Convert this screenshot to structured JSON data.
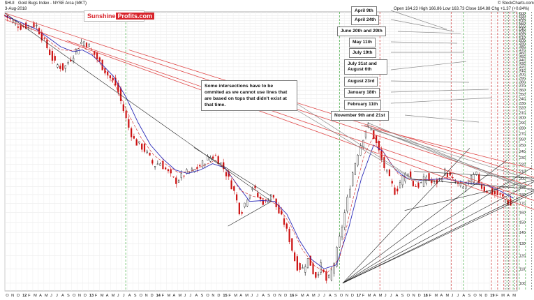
{
  "header": {
    "symbol": "$HUI",
    "index_name": "Gold Bugs Index - NYSE Arca (MKT)",
    "date": "3-Aug-2018",
    "ohlc": "Open 164.23  High 166.86  Low 163.73  Close 164.88  Chg +1.37 (+0.84%)",
    "watermark": "© StockCharts.com"
  },
  "logo": {
    "part1": "Sunshine",
    "part2": "Profits.com"
  },
  "annotation": "Some intersections have to be ommited as we cannot use lines that are based on tops that didn't exist at that time.",
  "callouts": [
    "April 9th",
    "April 24th",
    "June 20th and 29th",
    "May 11th",
    "July 19th",
    "July 31st and August 6th",
    "August 23rd",
    "January 18th",
    "February 11th",
    "November 9th and 21st"
  ],
  "colors": {
    "logo_red": "#d8232a",
    "down_candle": "#cc1010",
    "ma": "#2a2ab8",
    "red_line": "#e04b4b",
    "green_vline": "#3caa3c",
    "red_vline": "#cc2f2f"
  },
  "chart_data": {
    "type": "candlestick",
    "y_scale": "log",
    "ylim": [
      95,
      605
    ],
    "yticks": [
      100,
      110,
      120,
      130,
      140,
      150,
      160,
      170,
      180,
      190,
      200,
      210,
      220,
      230,
      240,
      250,
      260,
      270,
      280,
      290,
      300,
      310,
      320,
      330,
      340,
      350,
      360,
      370,
      380,
      390,
      400,
      410,
      420,
      430,
      440,
      450,
      460,
      470,
      480,
      490,
      500,
      510,
      520,
      530,
      540,
      550,
      560,
      570,
      580,
      590,
      600
    ],
    "x_range": [
      "2011-10",
      "2019-05"
    ],
    "x_ticks": [
      "O",
      "N",
      "D",
      "12",
      "F",
      "M",
      "A",
      "M",
      "J",
      "J",
      "A",
      "S",
      "O",
      "N",
      "D",
      "13",
      "F",
      "M",
      "A",
      "M",
      "J",
      "J",
      "A",
      "S",
      "O",
      "N",
      "D",
      "14",
      "F",
      "M",
      "A",
      "M",
      "J",
      "J",
      "A",
      "S",
      "O",
      "N",
      "D",
      "15",
      "F",
      "M",
      "A",
      "M",
      "J",
      "J",
      "A",
      "S",
      "O",
      "N",
      "D",
      "16",
      "F",
      "M",
      "A",
      "M",
      "J",
      "J",
      "A",
      "S",
      "O",
      "N",
      "D",
      "17",
      "F",
      "M",
      "A",
      "M",
      "J",
      "J",
      "A",
      "S",
      "O",
      "N",
      "D",
      "18",
      "F",
      "M",
      "A",
      "M",
      "J",
      "J",
      "A",
      "S",
      "O",
      "N",
      "D",
      "19",
      "F",
      "M",
      "A",
      "M"
    ],
    "price_path": [
      [
        0,
        590
      ],
      [
        5,
        548
      ],
      [
        10,
        555
      ],
      [
        13,
        490
      ],
      [
        16,
        430
      ],
      [
        19,
        415
      ],
      [
        22,
        455
      ],
      [
        25,
        500
      ],
      [
        27,
        485
      ],
      [
        30,
        440
      ],
      [
        33,
        400
      ],
      [
        36,
        370
      ],
      [
        38,
        320
      ],
      [
        40,
        280
      ],
      [
        42,
        255
      ],
      [
        44,
        248
      ],
      [
        46,
        236
      ],
      [
        48,
        218
      ],
      [
        50,
        223
      ],
      [
        52,
        212
      ],
      [
        55,
        196
      ],
      [
        58,
        207
      ],
      [
        61,
        211
      ],
      [
        64,
        222
      ],
      [
        66,
        231
      ],
      [
        68,
        232
      ],
      [
        70,
        219
      ],
      [
        72,
        202
      ],
      [
        74,
        183
      ],
      [
        76,
        158
      ],
      [
        78,
        176
      ],
      [
        80,
        190
      ],
      [
        82,
        175
      ],
      [
        84,
        170
      ],
      [
        86,
        182
      ],
      [
        88,
        162
      ],
      [
        90,
        150
      ],
      [
        92,
        132
      ],
      [
        94,
        112
      ],
      [
        96,
        110
      ],
      [
        98,
        118
      ],
      [
        100,
        104
      ],
      [
        102,
        112
      ],
      [
        104,
        100
      ],
      [
        106,
        112
      ],
      [
        108,
        135
      ],
      [
        110,
        165
      ],
      [
        112,
        205
      ],
      [
        114,
        240
      ],
      [
        116,
        270
      ],
      [
        117,
        285
      ],
      [
        118,
        279
      ],
      [
        120,
        250
      ],
      [
        122,
        220
      ],
      [
        124,
        200
      ],
      [
        126,
        182
      ],
      [
        128,
        200
      ],
      [
        130,
        210
      ],
      [
        132,
        190
      ],
      [
        134,
        192
      ],
      [
        136,
        203
      ],
      [
        138,
        193
      ],
      [
        140,
        197
      ],
      [
        142,
        210
      ],
      [
        144,
        200
      ],
      [
        146,
        192
      ],
      [
        148,
        188
      ],
      [
        150,
        198
      ],
      [
        152,
        206
      ],
      [
        154,
        188
      ],
      [
        156,
        184
      ],
      [
        158,
        181
      ],
      [
        160,
        178
      ],
      [
        162,
        173
      ],
      [
        163,
        168
      ],
      [
        164,
        165
      ]
    ],
    "sma": [
      [
        0,
        590
      ],
      [
        5,
        565
      ],
      [
        10,
        540
      ],
      [
        14,
        510
      ],
      [
        18,
        480
      ],
      [
        22,
        465
      ],
      [
        25,
        470
      ],
      [
        28,
        455
      ],
      [
        31,
        430
      ],
      [
        35,
        395
      ],
      [
        39,
        345
      ],
      [
        43,
        290
      ],
      [
        47,
        250
      ],
      [
        51,
        228
      ],
      [
        55,
        212
      ],
      [
        59,
        207
      ],
      [
        63,
        212
      ],
      [
        67,
        221
      ],
      [
        71,
        215
      ],
      [
        75,
        192
      ],
      [
        79,
        172
      ],
      [
        83,
        173
      ],
      [
        87,
        172
      ],
      [
        91,
        158
      ],
      [
        95,
        133
      ],
      [
        99,
        117
      ],
      [
        103,
        110
      ],
      [
        107,
        113
      ],
      [
        111,
        145
      ],
      [
        115,
        200
      ],
      [
        119,
        250
      ],
      [
        122,
        240
      ],
      [
        126,
        212
      ],
      [
        130,
        200
      ],
      [
        134,
        198
      ],
      [
        138,
        199
      ],
      [
        142,
        200
      ],
      [
        146,
        197
      ],
      [
        150,
        194
      ],
      [
        154,
        193
      ],
      [
        158,
        188
      ],
      [
        162,
        180
      ],
      [
        164,
        176
      ]
    ],
    "ema": [
      [
        0,
        588
      ],
      [
        5,
        560
      ],
      [
        10,
        545
      ],
      [
        14,
        500
      ],
      [
        18,
        470
      ],
      [
        22,
        468
      ],
      [
        25,
        480
      ],
      [
        28,
        460
      ],
      [
        32,
        415
      ],
      [
        36,
        365
      ],
      [
        40,
        305
      ],
      [
        44,
        262
      ],
      [
        48,
        234
      ],
      [
        52,
        220
      ],
      [
        56,
        208
      ],
      [
        60,
        210
      ],
      [
        64,
        218
      ],
      [
        68,
        226
      ],
      [
        72,
        210
      ],
      [
        76,
        185
      ],
      [
        80,
        178
      ],
      [
        84,
        175
      ],
      [
        88,
        168
      ],
      [
        92,
        148
      ],
      [
        96,
        125
      ],
      [
        100,
        112
      ],
      [
        104,
        107
      ],
      [
        108,
        118
      ],
      [
        112,
        170
      ],
      [
        116,
        235
      ],
      [
        119,
        265
      ],
      [
        123,
        232
      ],
      [
        127,
        206
      ],
      [
        131,
        198
      ],
      [
        135,
        199
      ],
      [
        139,
        198
      ],
      [
        143,
        202
      ],
      [
        147,
        195
      ],
      [
        151,
        196
      ],
      [
        155,
        192
      ],
      [
        159,
        185
      ],
      [
        163,
        172
      ],
      [
        164,
        170
      ]
    ],
    "vlines_green": [
      39,
      108,
      148,
      162,
      164,
      166,
      168,
      171,
      173,
      175,
      176,
      177
    ],
    "vlines_red": [
      121,
      144,
      157,
      159,
      161,
      163,
      165
    ],
    "vlines_dark": [
      161.5,
      162.5,
      164.5,
      170,
      174
    ],
    "red_lines": [
      [
        [
          0,
          600
        ],
        [
          170,
          190
        ]
      ],
      [
        [
          0,
          575
        ],
        [
          175,
          158
        ]
      ],
      [
        [
          20,
          500
        ],
        [
          175,
          168
        ]
      ],
      [
        [
          115,
          285
        ],
        [
          178,
          205
        ]
      ],
      [
        [
          40,
          470
        ],
        [
          176,
          195
        ]
      ]
    ],
    "black_lines": [
      [
        [
          0,
          600
        ],
        [
          86,
          172
        ]
      ],
      [
        [
          61,
          246
        ],
        [
          86,
          178
        ]
      ],
      [
        [
          72,
          146
        ],
        [
          86,
          172
        ]
      ],
      [
        [
          109,
          100
        ],
        [
          150,
          245
        ]
      ],
      [
        [
          109,
          100
        ],
        [
          162,
          226
        ]
      ],
      [
        [
          109,
          100
        ],
        [
          170,
          215
        ]
      ],
      [
        [
          109,
          100
        ],
        [
          177,
          210
        ]
      ],
      [
        [
          109,
          100
        ],
        [
          178,
          199
        ]
      ],
      [
        [
          109,
          100
        ],
        [
          176,
          192
        ]
      ],
      [
        [
          129,
          162
        ],
        [
          178,
          205
        ]
      ],
      [
        [
          130,
          200
        ],
        [
          172,
          186
        ]
      ],
      [
        [
          132,
          210
        ],
        [
          174,
          200
        ]
      ]
    ],
    "grey_lines": [
      [
        [
          116,
          285
        ],
        [
          167,
          192
        ]
      ],
      [
        [
          116,
          285
        ],
        [
          169,
          186
        ]
      ],
      [
        [
          117,
          290
        ],
        [
          173,
          180
        ]
      ],
      [
        [
          118,
          278
        ],
        [
          172,
          196
        ]
      ]
    ]
  }
}
